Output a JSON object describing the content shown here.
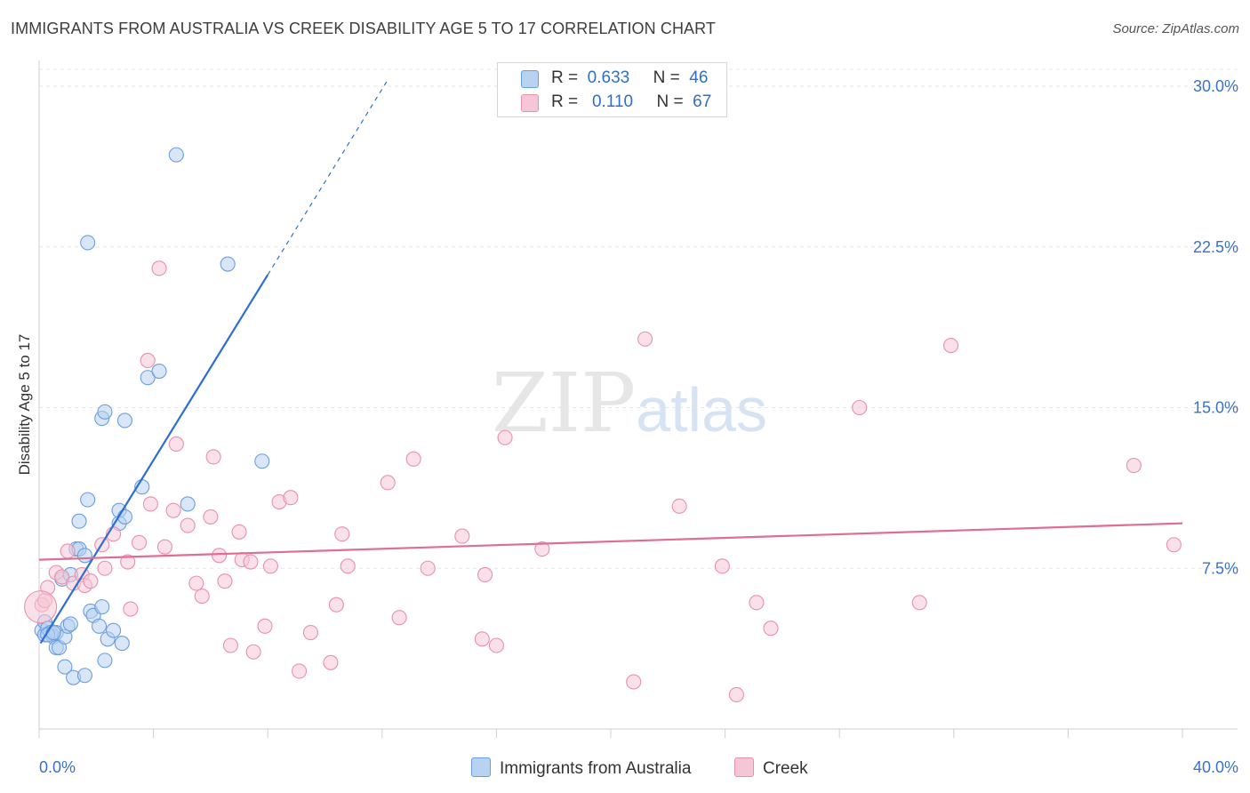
{
  "header": {
    "title": "IMMIGRANTS FROM AUSTRALIA VS CREEK DISABILITY AGE 5 TO 17 CORRELATION CHART",
    "source": "Source: ZipAtlas.com"
  },
  "watermark": {
    "zip": "ZIP",
    "atlas": "atlas"
  },
  "colors": {
    "blue": "#6a9ee0",
    "blue_fill": "#b8d2f1",
    "blue_line": "#2d6fd0",
    "pink": "#e891ab",
    "pink_fill": "#f5c6d5",
    "pink_line": "#e06d96",
    "grid": "#e6e6e6",
    "tick_label": "#3a72c8"
  },
  "legend": {
    "rows": [
      {
        "r_label": "R =",
        "r_value": "0.633",
        "n_label": "N =",
        "n_value": "46"
      },
      {
        "r_label": "R =",
        "r_value": "0.110",
        "n_label": "N =",
        "n_value": "67"
      }
    ]
  },
  "bottom_legend": {
    "series1": "Immigrants from Australia",
    "series2": "Creek"
  },
  "chart_data": {
    "type": "scatter",
    "title": "IMMIGRANTS FROM AUSTRALIA VS CREEK DISABILITY AGE 5 TO 17 CORRELATION CHART",
    "xlabel": "",
    "ylabel": "Disability Age 5 to 17",
    "xlim": [
      0,
      40
    ],
    "ylim": [
      0,
      31
    ],
    "x_tick_labels": [
      {
        "value": 0,
        "label": "0.0%"
      },
      {
        "value": 40,
        "label": "40.0%"
      }
    ],
    "y_ticks": [
      {
        "value": 7.5,
        "label": "7.5%"
      },
      {
        "value": 15,
        "label": "15.0%"
      },
      {
        "value": 22.5,
        "label": "22.5%"
      },
      {
        "value": 30,
        "label": "30.0%"
      }
    ],
    "series": [
      {
        "name": "Immigrants from Australia",
        "color": "blue",
        "R": 0.633,
        "N": 46,
        "trend": {
          "x_start": 0.05,
          "y_start": 4.0,
          "x_solid_end": 8.0,
          "y_solid_end": 21.2,
          "x_dash_end": 12.2,
          "y_dash_end": 30.3
        },
        "points": [
          [
            0.1,
            4.6
          ],
          [
            0.2,
            5.0
          ],
          [
            0.2,
            4.4
          ],
          [
            0.3,
            4.7
          ],
          [
            0.4,
            4.5
          ],
          [
            0.5,
            4.3
          ],
          [
            0.6,
            4.5
          ],
          [
            0.6,
            3.8
          ],
          [
            0.7,
            3.8
          ],
          [
            0.8,
            7.0
          ],
          [
            0.9,
            2.9
          ],
          [
            0.9,
            4.3
          ],
          [
            1.0,
            4.8
          ],
          [
            1.1,
            7.2
          ],
          [
            1.1,
            4.9
          ],
          [
            1.2,
            2.4
          ],
          [
            1.3,
            8.4
          ],
          [
            1.4,
            8.4
          ],
          [
            1.4,
            9.7
          ],
          [
            1.6,
            2.5
          ],
          [
            1.6,
            8.1
          ],
          [
            1.7,
            10.7
          ],
          [
            1.7,
            22.7
          ],
          [
            1.8,
            5.5
          ],
          [
            1.9,
            5.3
          ],
          [
            2.1,
            4.8
          ],
          [
            2.2,
            14.5
          ],
          [
            2.2,
            5.7
          ],
          [
            2.3,
            14.8
          ],
          [
            2.3,
            3.2
          ],
          [
            2.4,
            4.2
          ],
          [
            2.6,
            4.6
          ],
          [
            2.8,
            10.2
          ],
          [
            2.8,
            9.6
          ],
          [
            2.9,
            4.0
          ],
          [
            3.0,
            9.9
          ],
          [
            3.0,
            14.4
          ],
          [
            3.6,
            11.3
          ],
          [
            3.8,
            16.4
          ],
          [
            4.2,
            16.7
          ],
          [
            4.8,
            26.8
          ],
          [
            5.2,
            10.5
          ],
          [
            6.6,
            21.7
          ],
          [
            7.8,
            12.5
          ],
          [
            0.3,
            4.4
          ],
          [
            0.5,
            4.5
          ]
        ]
      },
      {
        "name": "Creek",
        "color": "pink",
        "R": 0.11,
        "N": 67,
        "trend": {
          "x_start": 0.0,
          "y_start": 7.9,
          "x_end": 40.0,
          "y_end": 9.6
        },
        "points": [
          [
            0.1,
            5.8
          ],
          [
            0.2,
            6.0
          ],
          [
            0.3,
            6.6
          ],
          [
            0.6,
            7.3
          ],
          [
            0.8,
            7.1
          ],
          [
            1.0,
            8.3
          ],
          [
            1.2,
            6.8
          ],
          [
            1.5,
            7.2
          ],
          [
            1.6,
            6.7
          ],
          [
            1.8,
            6.9
          ],
          [
            2.2,
            8.6
          ],
          [
            2.3,
            7.5
          ],
          [
            2.6,
            9.1
          ],
          [
            3.1,
            7.8
          ],
          [
            3.2,
            5.6
          ],
          [
            3.5,
            8.7
          ],
          [
            3.8,
            17.2
          ],
          [
            3.9,
            10.5
          ],
          [
            4.2,
            21.5
          ],
          [
            4.4,
            8.5
          ],
          [
            4.7,
            10.2
          ],
          [
            4.8,
            13.3
          ],
          [
            5.2,
            9.5
          ],
          [
            5.5,
            6.8
          ],
          [
            5.7,
            6.2
          ],
          [
            6.0,
            9.9
          ],
          [
            6.1,
            12.7
          ],
          [
            6.3,
            8.1
          ],
          [
            6.5,
            6.9
          ],
          [
            6.7,
            3.9
          ],
          [
            7.0,
            9.2
          ],
          [
            7.1,
            7.9
          ],
          [
            7.4,
            7.8
          ],
          [
            7.5,
            3.6
          ],
          [
            7.9,
            4.8
          ],
          [
            8.1,
            7.6
          ],
          [
            8.4,
            10.6
          ],
          [
            8.8,
            10.8
          ],
          [
            9.1,
            2.7
          ],
          [
            9.5,
            4.5
          ],
          [
            10.2,
            3.1
          ],
          [
            10.4,
            5.8
          ],
          [
            10.6,
            9.1
          ],
          [
            10.8,
            7.6
          ],
          [
            12.2,
            11.5
          ],
          [
            12.6,
            5.2
          ],
          [
            13.1,
            12.6
          ],
          [
            13.6,
            7.5
          ],
          [
            14.8,
            9.0
          ],
          [
            15.5,
            4.2
          ],
          [
            15.6,
            7.2
          ],
          [
            16.0,
            3.9
          ],
          [
            16.3,
            13.6
          ],
          [
            17.6,
            8.4
          ],
          [
            20.8,
            2.2
          ],
          [
            21.2,
            18.2
          ],
          [
            22.4,
            10.4
          ],
          [
            23.9,
            7.6
          ],
          [
            24.4,
            1.6
          ],
          [
            25.1,
            5.9
          ],
          [
            25.6,
            4.7
          ],
          [
            28.7,
            15.0
          ],
          [
            30.8,
            5.9
          ],
          [
            31.9,
            17.9
          ],
          [
            38.3,
            12.3
          ],
          [
            39.7,
            8.6
          ],
          [
            0.05,
            5.7
          ]
        ]
      }
    ]
  }
}
